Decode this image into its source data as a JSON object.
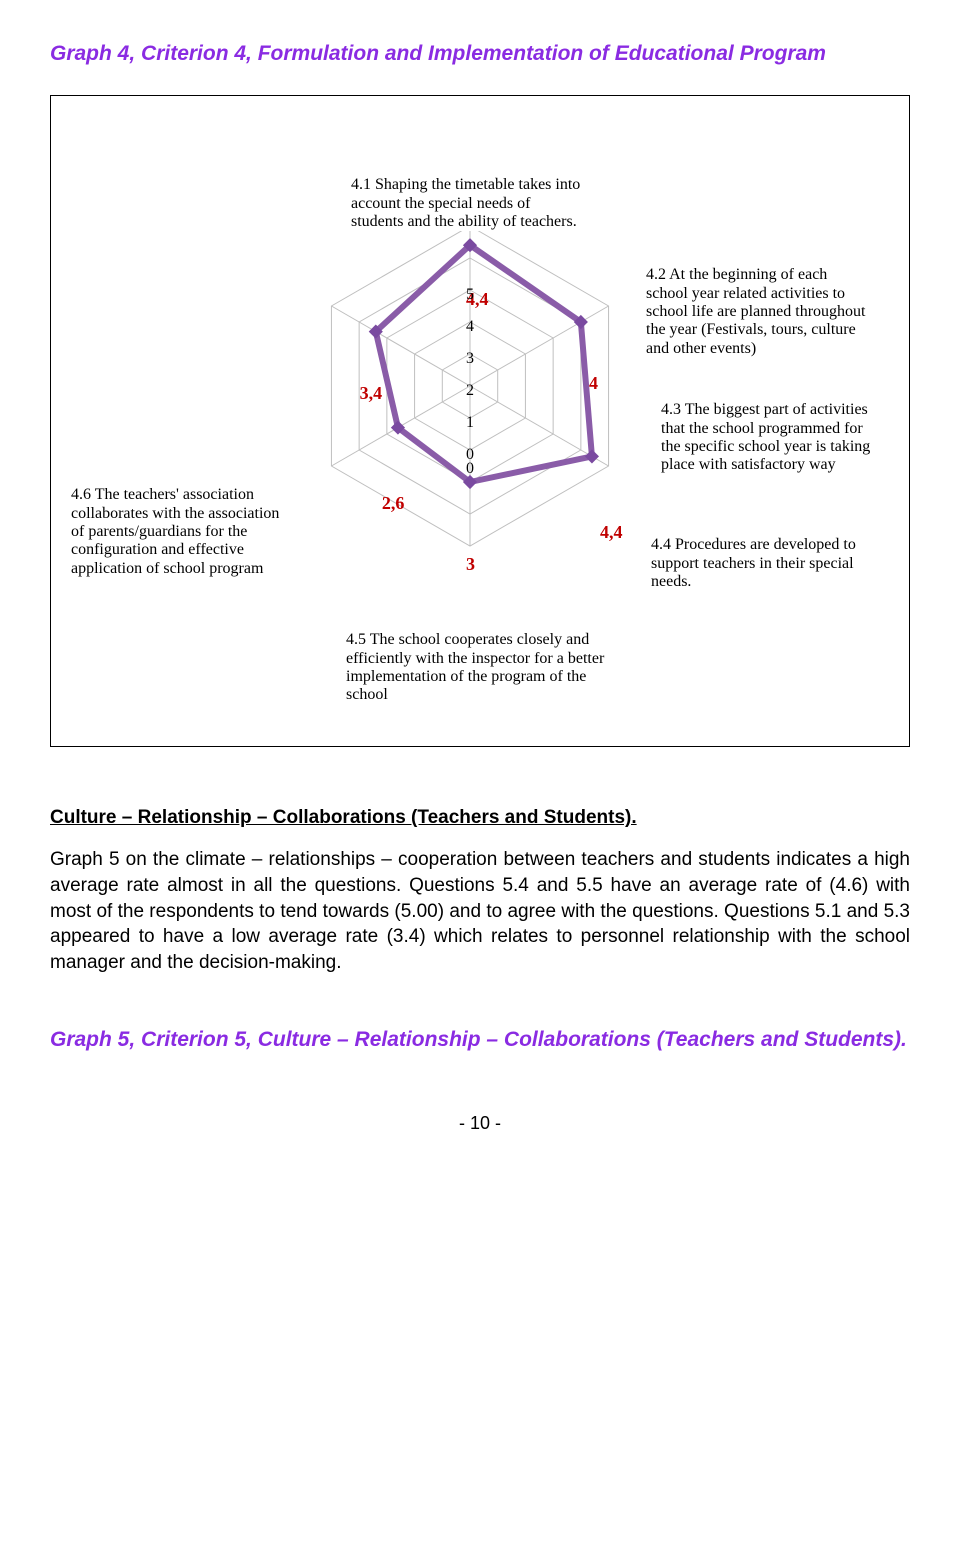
{
  "graph4": {
    "title": "Graph 4, Criterion 4, Formulation and Implementation of Educational Program",
    "max_scale": 5,
    "scale_ticks": [
      "0",
      "0",
      "1",
      "2",
      "3",
      "4",
      "5"
    ],
    "series_color": "#8a5ca8",
    "series_fill": "#b89ed0",
    "marker_color": "#7a4aa0",
    "value_color": "#c00000",
    "grid_color": "#bfbfbf",
    "background_color": "#ffffff",
    "axes": [
      {
        "id": "a41",
        "angle": -90,
        "value": 4.4,
        "display": "4,4",
        "label": "4.1 Shaping the timetable takes into account the special needs of students and the ability of teachers."
      },
      {
        "id": "a42",
        "angle": -30,
        "value": 4.0,
        "display": "4",
        "label": "4.2\nAt the beginning of each school year related activities to school life are planned throughout the year\n (Festivals, tours, culture and other events)"
      },
      {
        "id": "a43",
        "angle": 30,
        "value": 4.4,
        "display": "4,4",
        "label": "4.3 The biggest part of activities that the school programmed for the specific school year is taking place with satisfactory way"
      },
      {
        "id": "a44",
        "angle": 90,
        "value": 3.0,
        "display": "3",
        "label": "4.4 Procedures are developed to support teachers in their special needs."
      },
      {
        "id": "a45",
        "angle": 150,
        "value": 2.6,
        "display": "2,6",
        "label": "4.5 The school cooperates closely and efficiently with the inspector for a better implementation of the program of the school"
      },
      {
        "id": "a46",
        "angle": 210,
        "value": 3.4,
        "display": "3,4",
        "label": "4.6 The teachers' association collaborates with the association of parents/guardians for the configuration and effective application of school program"
      }
    ]
  },
  "section2": {
    "heading": "Culture – Relationship – Collaborations (Teachers and Students).",
    "body": "Graph 5 on the climate – relationships – cooperation between teachers and students indicates a high average rate almost in all the questions. Questions 5.4 and 5.5 have an average rate of (4.6) with most of the respondents to tend towards (5.00) and to agree with the questions. Questions 5.1 and 5.3 appeared to have a low average rate (3.4) which relates to personnel relationship with the school manager and the decision-making."
  },
  "graph5": {
    "title": "Graph 5, Criterion 5, Culture – Relationship – Collaborations (Teachers and Students)."
  },
  "page_number": "- 10 -"
}
